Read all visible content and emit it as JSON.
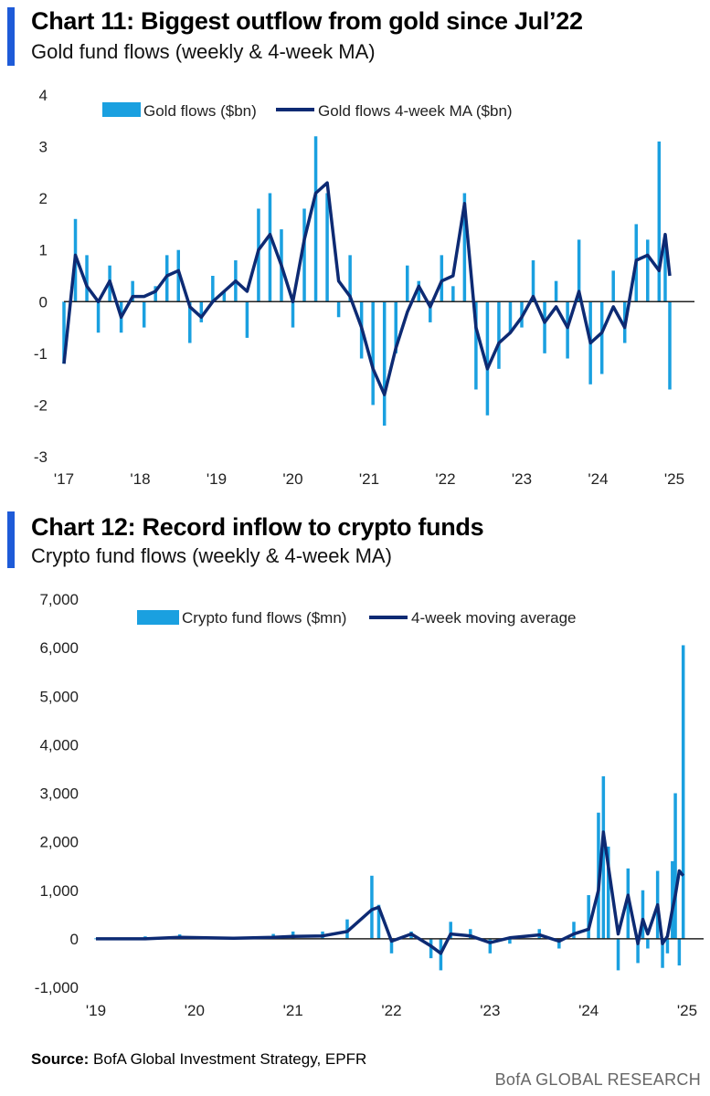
{
  "colors": {
    "accent": "#1e5bd8",
    "bars": "#1aa0e0",
    "ma_line": "#0d2a73",
    "zero_line": "#222222",
    "source_text": "#666666"
  },
  "charts": [
    {
      "header": {
        "title": "Chart 11: Biggest outflow from gold since Jul’22",
        "subtitle": "Gold fund flows (weekly & 4-week MA)"
      },
      "legend": {
        "bar_label": "Gold flows ($bn)",
        "line_label": "Gold flows 4-week MA ($bn)"
      }
    },
    {
      "header": {
        "title": "Chart 12: Record inflow to crypto funds",
        "subtitle": "Crypto fund flows (weekly & 4-week MA)"
      },
      "legend": {
        "bar_label": "Crypto fund flows ($mn)",
        "line_label": "4-week moving average"
      }
    }
  ],
  "chart_data": [
    {
      "type": "bar+line",
      "title": "Chart 11: Biggest outflow from gold since Jul’22",
      "subtitle": "Gold fund flows (weekly & 4-week MA)",
      "xlabel": "",
      "ylabel": "",
      "x_range": [
        2017.0,
        2025.0
      ],
      "ylim": [
        -3,
        4
      ],
      "y_ticks": [
        4,
        3,
        2,
        1,
        0,
        -1,
        -2,
        -3
      ],
      "y_tick_labels": [
        "4",
        "3",
        "2",
        "1",
        "0",
        "-1",
        "-2",
        "-3"
      ],
      "x_tick_values": [
        2017,
        2018,
        2019,
        2020,
        2021,
        2022,
        2023,
        2024,
        2025
      ],
      "x_tick_labels": [
        "'17",
        "'18",
        "'19",
        "'20",
        "'21",
        "'22",
        "'23",
        "'24",
        "'25"
      ],
      "legend_position": "top",
      "series": [
        {
          "name": "Gold flows ($bn)",
          "kind": "bar",
          "x": [
            2017.0,
            2017.15,
            2017.3,
            2017.45,
            2017.6,
            2017.75,
            2017.9,
            2018.05,
            2018.2,
            2018.35,
            2018.5,
            2018.65,
            2018.8,
            2018.95,
            2019.1,
            2019.25,
            2019.4,
            2019.55,
            2019.7,
            2019.85,
            2020.0,
            2020.15,
            2020.3,
            2020.45,
            2020.6,
            2020.75,
            2020.9,
            2021.05,
            2021.2,
            2021.35,
            2021.5,
            2021.65,
            2021.8,
            2021.95,
            2022.1,
            2022.25,
            2022.4,
            2022.55,
            2022.7,
            2022.85,
            2023.0,
            2023.15,
            2023.3,
            2023.45,
            2023.6,
            2023.75,
            2023.9,
            2024.05,
            2024.2,
            2024.35,
            2024.5,
            2024.65,
            2024.8,
            2024.88,
            2024.94
          ],
          "values": [
            -1.2,
            1.6,
            0.9,
            -0.6,
            0.7,
            -0.6,
            0.4,
            -0.5,
            0.3,
            0.9,
            1.0,
            -0.8,
            -0.4,
            0.5,
            0.2,
            0.8,
            -0.7,
            1.8,
            2.1,
            1.4,
            -0.5,
            1.8,
            3.2,
            2.1,
            -0.3,
            0.9,
            -1.1,
            -2.0,
            -2.4,
            -1.0,
            0.7,
            0.4,
            -0.4,
            0.9,
            0.3,
            2.1,
            -1.7,
            -2.2,
            -1.3,
            -0.6,
            -0.5,
            0.8,
            -1.0,
            0.4,
            -1.1,
            1.2,
            -1.6,
            -1.4,
            0.6,
            -0.8,
            1.5,
            1.2,
            3.1,
            1.1,
            -1.7
          ]
        },
        {
          "name": "Gold flows 4-week MA ($bn)",
          "kind": "line",
          "x": [
            2017.0,
            2017.15,
            2017.3,
            2017.45,
            2017.6,
            2017.75,
            2017.9,
            2018.05,
            2018.2,
            2018.35,
            2018.5,
            2018.65,
            2018.8,
            2018.95,
            2019.1,
            2019.25,
            2019.4,
            2019.55,
            2019.7,
            2019.85,
            2020.0,
            2020.15,
            2020.3,
            2020.45,
            2020.6,
            2020.75,
            2020.9,
            2021.05,
            2021.2,
            2021.35,
            2021.5,
            2021.65,
            2021.8,
            2021.95,
            2022.1,
            2022.25,
            2022.4,
            2022.55,
            2022.7,
            2022.85,
            2023.0,
            2023.15,
            2023.3,
            2023.45,
            2023.6,
            2023.75,
            2023.9,
            2024.05,
            2024.2,
            2024.35,
            2024.5,
            2024.65,
            2024.8,
            2024.88,
            2024.94
          ],
          "values": [
            -1.2,
            0.9,
            0.3,
            0.0,
            0.4,
            -0.3,
            0.1,
            0.1,
            0.2,
            0.5,
            0.6,
            -0.1,
            -0.3,
            0.0,
            0.2,
            0.4,
            0.2,
            1.0,
            1.3,
            0.7,
            0.0,
            1.2,
            2.1,
            2.3,
            0.4,
            0.1,
            -0.5,
            -1.3,
            -1.8,
            -0.9,
            -0.2,
            0.3,
            -0.1,
            0.4,
            0.5,
            1.9,
            -0.5,
            -1.3,
            -0.8,
            -0.6,
            -0.3,
            0.1,
            -0.4,
            -0.1,
            -0.5,
            0.2,
            -0.8,
            -0.6,
            -0.1,
            -0.5,
            0.8,
            0.9,
            0.6,
            1.3,
            0.5
          ]
        }
      ]
    },
    {
      "type": "bar+line",
      "title": "Chart 12: Record inflow to crypto funds",
      "subtitle": "Crypto fund flows (weekly & 4-week MA)",
      "xlabel": "",
      "ylabel": "",
      "x_range": [
        2019.0,
        2025.0
      ],
      "ylim": [
        -1000,
        7000
      ],
      "y_ticks": [
        7000,
        6000,
        5000,
        4000,
        3000,
        2000,
        1000,
        0,
        -1000
      ],
      "y_tick_labels": [
        "7,000",
        "6,000",
        "5,000",
        "4,000",
        "3,000",
        "2,000",
        "1,000",
        "0",
        "-1,000"
      ],
      "x_tick_values": [
        2019,
        2020,
        2021,
        2022,
        2023,
        2024,
        2025
      ],
      "x_tick_labels": [
        "'19",
        "'20",
        "'21",
        "'22",
        "'23",
        "'24",
        "'25"
      ],
      "legend_position": "top",
      "series": [
        {
          "name": "Crypto fund flows ($mn)",
          "kind": "bar",
          "x": [
            2019.0,
            2019.5,
            2019.85,
            2020.4,
            2020.8,
            2021.0,
            2021.3,
            2021.55,
            2021.8,
            2021.87,
            2022.0,
            2022.2,
            2022.4,
            2022.5,
            2022.6,
            2022.8,
            2023.0,
            2023.2,
            2023.5,
            2023.7,
            2023.85,
            2024.0,
            2024.1,
            2024.15,
            2024.2,
            2024.3,
            2024.4,
            2024.5,
            2024.55,
            2024.6,
            2024.7,
            2024.75,
            2024.8,
            2024.85,
            2024.88,
            2024.92,
            2024.96
          ],
          "values": [
            10,
            50,
            90,
            40,
            100,
            150,
            150,
            400,
            1300,
            700,
            -300,
            150,
            -400,
            -650,
            350,
            200,
            -300,
            -100,
            200,
            -200,
            350,
            900,
            2600,
            3350,
            1900,
            -650,
            1450,
            -500,
            1000,
            -200,
            1400,
            -600,
            -300,
            1600,
            3000,
            -550,
            6050
          ]
        },
        {
          "name": "4-week moving average",
          "kind": "line",
          "x": [
            2019.0,
            2019.5,
            2019.85,
            2020.4,
            2020.8,
            2021.0,
            2021.3,
            2021.55,
            2021.8,
            2021.87,
            2022.0,
            2022.2,
            2022.4,
            2022.5,
            2022.6,
            2022.8,
            2023.0,
            2023.2,
            2023.5,
            2023.7,
            2023.85,
            2024.0,
            2024.1,
            2024.15,
            2024.2,
            2024.3,
            2024.4,
            2024.5,
            2024.55,
            2024.6,
            2024.7,
            2024.75,
            2024.8,
            2024.85,
            2024.88,
            2024.92,
            2024.96
          ],
          "values": [
            0,
            0,
            30,
            10,
            30,
            50,
            60,
            150,
            600,
            650,
            -50,
            100,
            -150,
            -300,
            100,
            60,
            -80,
            20,
            80,
            -50,
            100,
            200,
            1000,
            2200,
            1500,
            100,
            900,
            -100,
            400,
            100,
            700,
            -100,
            50,
            600,
            900,
            1400,
            1300
          ]
        }
      ]
    }
  ],
  "footer": {
    "source_label": "Source:",
    "source_text": "BofA Global Investment Strategy, EPFR",
    "brand": "BofA GLOBAL RESEARCH"
  }
}
